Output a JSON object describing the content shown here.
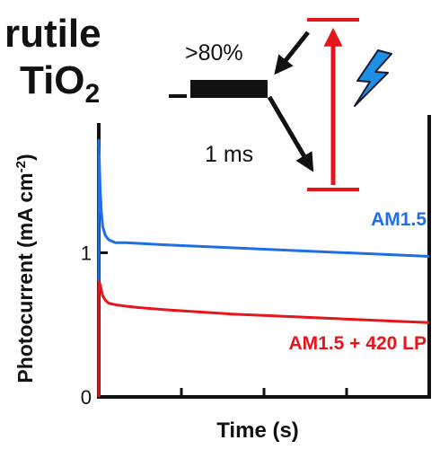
{
  "header": {
    "material_line1": "rutile",
    "material_line2": "TiO",
    "material_subscript": "2"
  },
  "scheme": {
    "upper_arrow_label": ">80%",
    "lower_arrow_label": "1 ms",
    "lightning_icon": "lightning-bolt-icon",
    "colors": {
      "excitation": "#e8141b",
      "lightning": "#1e8fe6",
      "lightning_outline": "#1a1a2e",
      "arrows": "#111111"
    }
  },
  "chart_data": {
    "type": "line",
    "xlabel": "Time (s)",
    "ylabel": "Photocurrent (mA cm",
    "ylabel_superscript": "-2",
    "ylabel_close": ")",
    "y_tick_labels": [
      "0",
      "1"
    ],
    "y_ticks": [
      0,
      1
    ],
    "ylim": [
      0,
      1.9
    ],
    "xlim": [
      0,
      1
    ],
    "x_tick_count": 4,
    "grid": false,
    "series": [
      {
        "name": "AM1.5",
        "color": "#1e6fe6",
        "x": [
          0,
          0.004,
          0.008,
          0.012,
          0.02,
          0.03,
          0.05,
          0.08,
          0.12,
          0.2,
          0.3,
          0.4,
          0.5,
          0.6,
          0.7,
          0.8,
          0.9,
          1.0
        ],
        "y": [
          1.78,
          1.45,
          1.28,
          1.18,
          1.12,
          1.09,
          1.07,
          1.07,
          1.065,
          1.055,
          1.045,
          1.035,
          1.025,
          1.015,
          1.005,
          0.995,
          0.985,
          0.975
        ]
      },
      {
        "name": "AM1.5 + 420 LP",
        "color": "#e8141b",
        "x": [
          0,
          0.004,
          0.008,
          0.012,
          0.02,
          0.03,
          0.05,
          0.08,
          0.12,
          0.2,
          0.3,
          0.4,
          0.5,
          0.6,
          0.7,
          0.8,
          0.9,
          1.0
        ],
        "y": [
          0.8,
          0.78,
          0.74,
          0.7,
          0.67,
          0.65,
          0.64,
          0.63,
          0.62,
          0.605,
          0.59,
          0.575,
          0.565,
          0.555,
          0.545,
          0.535,
          0.525,
          0.515
        ]
      }
    ]
  }
}
